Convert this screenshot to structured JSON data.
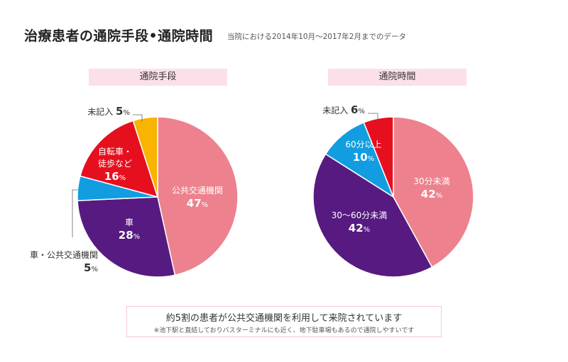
{
  "title": "治療患者の通院手段•通院時間",
  "subtitle": "当院における2014年10月～2017年2月までのデータ",
  "chart_data": [
    {
      "type": "pie",
      "title": "通院手段",
      "slices": [
        {
          "label": "公共交通機関",
          "value": 47,
          "display": "47",
          "color": "#ed828e"
        },
        {
          "label": "車",
          "value": 28,
          "display": "28",
          "color": "#561a80"
        },
        {
          "label": "車・公共交通機関",
          "value": 5,
          "display": "5",
          "color": "#129de0"
        },
        {
          "label": "自転車・徒歩など",
          "value": 16,
          "display": "16",
          "color": "#e60f1e"
        },
        {
          "label": "未記入",
          "value": 5,
          "display": "5",
          "color": "#f9b400"
        }
      ]
    },
    {
      "type": "pie",
      "title": "通院時間",
      "slices": [
        {
          "label": "30分未満",
          "value": 42,
          "display": "42",
          "color": "#ed828e"
        },
        {
          "label": "30～60分未満",
          "value": 42,
          "display": "42",
          "color": "#561a80"
        },
        {
          "label": "60分以上",
          "value": 10,
          "display": "10",
          "color": "#129de0"
        },
        {
          "label": "未記入",
          "value": 6,
          "display": "6",
          "color": "#e60f1e"
        }
      ]
    }
  ],
  "percent_unit": "%",
  "footer": {
    "main": "約5割の患者が公共交通機関を利用して来院されています",
    "note": "※池下駅と直結しておりバスターミナルにも近く、地下駐車場もあるので通院しやすいです"
  }
}
